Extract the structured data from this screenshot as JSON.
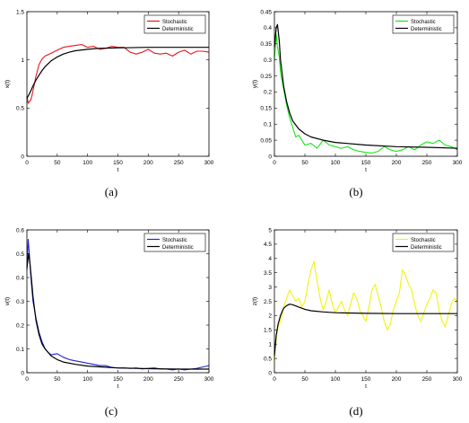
{
  "figure": {
    "captions": [
      "(a)",
      "(b)",
      "(c)",
      "(d)"
    ]
  },
  "chart_data": [
    {
      "type": "line",
      "panel": "(a)",
      "xlabel": "t",
      "ylabel": "x(t)",
      "xlim": [
        0,
        300
      ],
      "ylim": [
        0,
        1.5
      ],
      "xticks": [
        0,
        50,
        100,
        150,
        200,
        250,
        300
      ],
      "yticks": [
        0,
        0.5,
        1,
        1.5
      ],
      "ytick_labels": [
        "0",
        "0.5",
        "1",
        "1.5"
      ],
      "legend_position": "top-right",
      "grid": false,
      "series": [
        {
          "name": "Stochastic",
          "color": "#e8141b",
          "x": [
            0,
            2,
            4,
            6,
            8,
            10,
            15,
            20,
            25,
            30,
            40,
            50,
            60,
            70,
            80,
            90,
            100,
            110,
            120,
            130,
            140,
            150,
            160,
            170,
            180,
            190,
            200,
            210,
            220,
            230,
            240,
            250,
            260,
            270,
            280,
            290,
            300
          ],
          "y": [
            0.62,
            0.55,
            0.57,
            0.58,
            0.62,
            0.68,
            0.83,
            0.95,
            1.01,
            1.04,
            1.07,
            1.1,
            1.13,
            1.14,
            1.15,
            1.16,
            1.13,
            1.14,
            1.11,
            1.12,
            1.14,
            1.13,
            1.13,
            1.08,
            1.06,
            1.08,
            1.11,
            1.07,
            1.06,
            1.07,
            1.04,
            1.08,
            1.1,
            1.06,
            1.09,
            1.09,
            1.08
          ]
        },
        {
          "name": "Deterministic",
          "color": "#000000",
          "x": [
            0,
            5,
            10,
            15,
            20,
            25,
            30,
            40,
            50,
            60,
            70,
            80,
            100,
            120,
            150,
            200,
            250,
            300
          ],
          "y": [
            0.6,
            0.66,
            0.73,
            0.79,
            0.84,
            0.89,
            0.93,
            0.99,
            1.03,
            1.06,
            1.08,
            1.095,
            1.11,
            1.12,
            1.125,
            1.13,
            1.13,
            1.13
          ]
        }
      ]
    },
    {
      "type": "line",
      "panel": "(b)",
      "xlabel": "t",
      "ylabel": "y(t)",
      "xlim": [
        0,
        300
      ],
      "ylim": [
        0,
        0.45
      ],
      "xticks": [
        0,
        50,
        100,
        150,
        200,
        250,
        300
      ],
      "yticks": [
        0,
        0.05,
        0.1,
        0.15,
        0.2,
        0.25,
        0.3,
        0.35,
        0.4,
        0.45
      ],
      "ytick_labels": [
        "0",
        "0.05",
        "0.1",
        "0.15",
        "0.2",
        "0.25",
        "0.3",
        "0.35",
        "0.4",
        "0.45"
      ],
      "legend_position": "top-right",
      "grid": false,
      "series": [
        {
          "name": "Stochastic",
          "color": "#15e615",
          "x": [
            0,
            3,
            5,
            8,
            10,
            15,
            20,
            25,
            30,
            35,
            40,
            45,
            50,
            60,
            70,
            80,
            90,
            100,
            110,
            120,
            130,
            140,
            150,
            160,
            170,
            180,
            190,
            200,
            210,
            220,
            230,
            240,
            250,
            260,
            270,
            280,
            290,
            300
          ],
          "y": [
            0.3,
            0.38,
            0.34,
            0.31,
            0.26,
            0.21,
            0.16,
            0.12,
            0.09,
            0.06,
            0.065,
            0.05,
            0.035,
            0.04,
            0.025,
            0.05,
            0.035,
            0.03,
            0.025,
            0.03,
            0.02,
            0.015,
            0.012,
            0.01,
            0.015,
            0.03,
            0.02,
            0.015,
            0.02,
            0.03,
            0.02,
            0.035,
            0.045,
            0.04,
            0.05,
            0.035,
            0.03,
            0.02
          ]
        },
        {
          "name": "Deterministic",
          "color": "#000000",
          "x": [
            0,
            3,
            5,
            8,
            10,
            15,
            20,
            25,
            30,
            40,
            50,
            60,
            80,
            100,
            150,
            200,
            250,
            300
          ],
          "y": [
            0.34,
            0.4,
            0.41,
            0.36,
            0.3,
            0.22,
            0.17,
            0.135,
            0.11,
            0.085,
            0.07,
            0.06,
            0.05,
            0.043,
            0.035,
            0.03,
            0.028,
            0.025
          ]
        }
      ]
    },
    {
      "type": "line",
      "panel": "(c)",
      "xlabel": "t",
      "ylabel": "v(t)",
      "xlim": [
        0,
        300
      ],
      "ylim": [
        0,
        0.6
      ],
      "xticks": [
        0,
        50,
        100,
        150,
        200,
        250,
        300
      ],
      "yticks": [
        0,
        0.1,
        0.2,
        0.3,
        0.4,
        0.5,
        0.6
      ],
      "ytick_labels": [
        "0",
        "0.1",
        "0.2",
        "0.3",
        "0.4",
        "0.5",
        "0.6"
      ],
      "legend_position": "top-right",
      "grid": false,
      "series": [
        {
          "name": "Stochastic",
          "color": "#1c23d6",
          "x": [
            0,
            2,
            4,
            6,
            8,
            10,
            15,
            20,
            25,
            30,
            35,
            40,
            50,
            60,
            70,
            80,
            90,
            100,
            110,
            120,
            130,
            140,
            150,
            160,
            170,
            180,
            190,
            200,
            210,
            220,
            230,
            240,
            250,
            260,
            270,
            280,
            290,
            300
          ],
          "y": [
            0.43,
            0.56,
            0.5,
            0.42,
            0.36,
            0.3,
            0.23,
            0.17,
            0.13,
            0.1,
            0.085,
            0.075,
            0.08,
            0.065,
            0.055,
            0.05,
            0.045,
            0.04,
            0.035,
            0.03,
            0.03,
            0.022,
            0.02,
            0.02,
            0.018,
            0.02,
            0.016,
            0.018,
            0.02,
            0.016,
            0.015,
            0.012,
            0.016,
            0.012,
            0.015,
            0.018,
            0.024,
            0.03
          ]
        },
        {
          "name": "Deterministic",
          "color": "#000000",
          "x": [
            0,
            3,
            5,
            8,
            10,
            15,
            20,
            25,
            30,
            40,
            50,
            60,
            80,
            100,
            150,
            200,
            250,
            300
          ],
          "y": [
            0.44,
            0.5,
            0.46,
            0.38,
            0.32,
            0.22,
            0.16,
            0.12,
            0.1,
            0.07,
            0.055,
            0.045,
            0.035,
            0.028,
            0.02,
            0.017,
            0.015,
            0.015
          ]
        }
      ]
    },
    {
      "type": "line",
      "panel": "(d)",
      "xlabel": "t",
      "ylabel": "z(t)",
      "xlim": [
        0,
        300
      ],
      "ylim": [
        0,
        5
      ],
      "xticks": [
        0,
        50,
        100,
        150,
        200,
        250,
        300
      ],
      "yticks": [
        0,
        0.5,
        1,
        1.5,
        2,
        2.5,
        3,
        3.5,
        4,
        4.5,
        5
      ],
      "ytick_labels": [
        "0",
        "0.5",
        "1",
        "1.5",
        "2",
        "2.5",
        "3",
        "3.5",
        "4",
        "4.5",
        "5"
      ],
      "legend_position": "top-right",
      "grid": false,
      "series": [
        {
          "name": "Stochastic",
          "color": "#f2f20f",
          "x": [
            0,
            3,
            6,
            10,
            15,
            20,
            25,
            30,
            35,
            40,
            45,
            50,
            55,
            60,
            65,
            70,
            75,
            80,
            85,
            90,
            95,
            100,
            105,
            110,
            115,
            120,
            125,
            130,
            135,
            140,
            145,
            150,
            155,
            160,
            165,
            170,
            175,
            180,
            185,
            190,
            195,
            200,
            205,
            210,
            215,
            220,
            225,
            230,
            235,
            240,
            245,
            250,
            255,
            260,
            265,
            270,
            275,
            280,
            285,
            290,
            295,
            300
          ],
          "y": [
            0.4,
            1.2,
            1.6,
            1.8,
            2.3,
            2.6,
            2.9,
            2.7,
            2.5,
            2.6,
            2.3,
            2.5,
            3.1,
            3.6,
            3.9,
            3.2,
            2.6,
            2.2,
            2.5,
            2.9,
            2.4,
            2.1,
            2.3,
            2.5,
            2.2,
            2.0,
            2.4,
            2.8,
            2.6,
            2.2,
            2.0,
            1.8,
            2.3,
            2.9,
            3.1,
            2.7,
            2.3,
            1.8,
            1.5,
            1.7,
            2.2,
            2.5,
            2.8,
            3.6,
            3.4,
            3.1,
            2.9,
            2.4,
            2.0,
            1.8,
            2.1,
            2.4,
            2.6,
            2.9,
            2.8,
            2.2,
            1.8,
            1.6,
            2.0,
            2.4,
            2.6,
            2.5
          ]
        },
        {
          "name": "Deterministic",
          "color": "#000000",
          "x": [
            0,
            3,
            6,
            10,
            15,
            20,
            25,
            30,
            40,
            50,
            60,
            80,
            100,
            150,
            200,
            250,
            300
          ],
          "y": [
            0.6,
            1.3,
            1.7,
            2.0,
            2.25,
            2.35,
            2.4,
            2.38,
            2.3,
            2.22,
            2.17,
            2.13,
            2.1,
            2.08,
            2.07,
            2.07,
            2.07
          ]
        }
      ]
    }
  ]
}
